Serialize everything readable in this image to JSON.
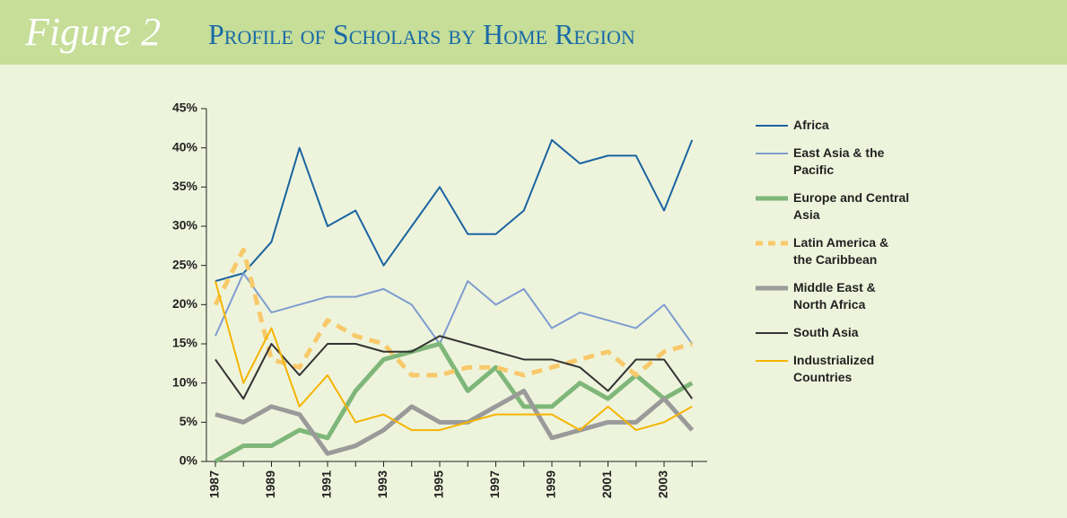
{
  "chart_data": {
    "type": "line",
    "figure_label": "Figure 2",
    "title": "Profile of Scholars by Home Region",
    "categories": [
      "1987",
      null,
      "1989",
      null,
      "1991",
      null,
      "1993",
      null,
      "1995",
      null,
      "1997",
      null,
      "1999",
      null,
      "2001",
      null,
      "2003",
      null
    ],
    "ylim": [
      0,
      45
    ],
    "yticks": [
      {
        "value": 0,
        "label": "0%"
      },
      {
        "value": 5,
        "label": "5%"
      },
      {
        "value": 10,
        "label": "10%"
      },
      {
        "value": 15,
        "label": "15%"
      },
      {
        "value": 20,
        "label": "20%"
      },
      {
        "value": 25,
        "label": "25%"
      },
      {
        "value": 30,
        "label": "30%"
      },
      {
        "value": 35,
        "label": "35%"
      },
      {
        "value": 40,
        "label": "40%"
      },
      {
        "value": 45,
        "label": "45%"
      }
    ],
    "legend": "right",
    "series": [
      {
        "name": "Africa",
        "color": "#1a64a0",
        "width": 2,
        "values": [
          23,
          24,
          28,
          40,
          30,
          32,
          25,
          30,
          35,
          29,
          29,
          32,
          41,
          38,
          39,
          39,
          32,
          41
        ]
      },
      {
        "name": "East Asia & the Pacific",
        "color": "#7d9ccf",
        "width": 2,
        "values": [
          16,
          24,
          19,
          20,
          21,
          21,
          22,
          20,
          15,
          23,
          20,
          22,
          17,
          19,
          18,
          17,
          20,
          15
        ]
      },
      {
        "name": "Europe and Central Asia",
        "color": "#7fb77a",
        "width": 5,
        "values": [
          0,
          2,
          2,
          4,
          3,
          9,
          13,
          14,
          15,
          9,
          12,
          7,
          7,
          10,
          8,
          11,
          8,
          10
        ]
      },
      {
        "name": "Latin America & the Caribbean",
        "color": "#f8c96a",
        "width": 5,
        "dashed": true,
        "values": [
          20,
          27,
          13,
          12,
          18,
          16,
          15,
          11,
          11,
          12,
          12,
          11,
          12,
          13,
          14,
          11,
          14,
          15
        ]
      },
      {
        "name": "Middle East & North Africa",
        "color": "#9a9a9a",
        "width": 5,
        "values": [
          6,
          5,
          7,
          6,
          1,
          2,
          4,
          7,
          5,
          5,
          7,
          9,
          3,
          4,
          5,
          5,
          8,
          4
        ]
      },
      {
        "name": "South Asia",
        "color": "#333333",
        "width": 2,
        "values": [
          13,
          8,
          15,
          11,
          15,
          15,
          14,
          14,
          16,
          15,
          14,
          13,
          13,
          12,
          9,
          13,
          13,
          8
        ]
      },
      {
        "name": "Industrialized Countries",
        "color": "#f5b400",
        "width": 2,
        "values": [
          23,
          10,
          17,
          7,
          11,
          5,
          6,
          4,
          4,
          5,
          6,
          6,
          6,
          4,
          7,
          4,
          5,
          7
        ]
      }
    ]
  }
}
